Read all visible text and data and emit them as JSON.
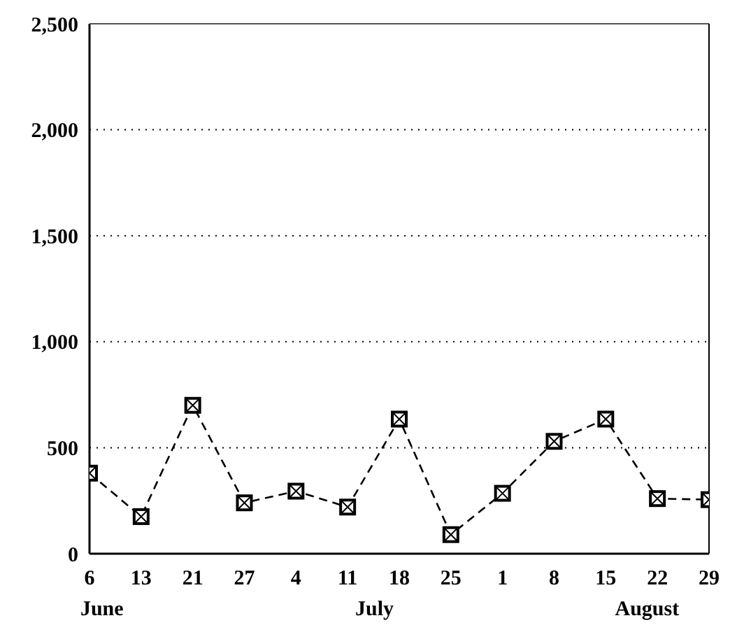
{
  "chart_data": {
    "type": "line",
    "categories": [
      "6",
      "13",
      "21",
      "27",
      "4",
      "11",
      "18",
      "25",
      "1",
      "8",
      "15",
      "22",
      "29"
    ],
    "series": [
      {
        "color": "#000000",
        "values": [
          380,
          175,
          700,
          240,
          295,
          220,
          635,
          90,
          285,
          530,
          635,
          260,
          255
        ]
      }
    ],
    "ylim": [
      0,
      2500
    ],
    "yticks": [
      {
        "value": 0,
        "label": "0"
      },
      {
        "value": 500,
        "label": "500"
      },
      {
        "value": 1000,
        "label": "1,000"
      },
      {
        "value": 1500,
        "label": "1,500"
      },
      {
        "value": 2000,
        "label": "2,000"
      },
      {
        "value": 2500,
        "label": "2,500"
      }
    ],
    "grid": "y",
    "marker": "square",
    "line_style": "dashed",
    "legend": false,
    "annotations": [
      "June",
      "July",
      "August"
    ]
  }
}
